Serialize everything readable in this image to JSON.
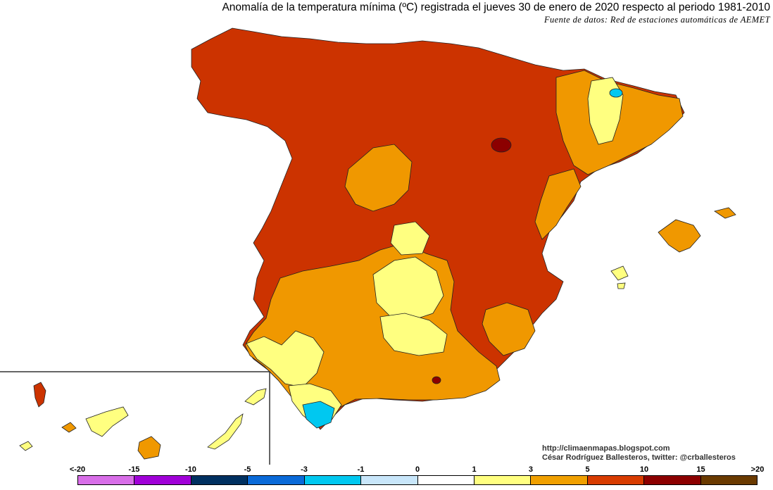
{
  "title": "Anomalía de la temperatura mínima (ºC) registrada el jueves 30 de enero de 2020 respecto al periodo 1981-2010",
  "subtitle": "Fuente de datos: Red de estaciones automáticas de AEMET",
  "credits": {
    "url": "http://climaenmapas.blogspot.com",
    "author": "César Rodríguez Ballesteros, twitter: @crballesteros"
  },
  "legend": {
    "labels": [
      "<-20",
      "-15",
      "-10",
      "-5",
      "-3",
      "-1",
      "0",
      "1",
      "3",
      "5",
      "10",
      "15",
      ">20"
    ],
    "colors": [
      "#d86ee8",
      "#a000d8",
      "#003060",
      "#0a6ad8",
      "#00c8f0",
      "#c8e6fa",
      "#ffffff",
      "#ffff80",
      "#f0a000",
      "#d83c00",
      "#8c0000",
      "#6a3a00"
    ]
  },
  "map_colors": {
    "anomaly_10_15": "#8c0000",
    "anomaly_5_10": "#cc3300",
    "anomaly_3_5": "#f09800",
    "anomaly_1_3": "#ffff80",
    "anomaly_0_1": "#ffffff",
    "anomaly_m1_0": "#c8e6fa",
    "anomaly_m3_m1": "#00c8f0",
    "anomaly_m5_m3": "#0a6ad8"
  }
}
